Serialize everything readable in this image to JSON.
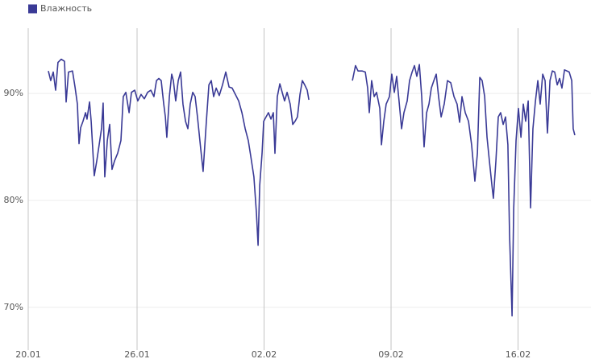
{
  "chart_data": {
    "type": "line",
    "x": [
      1.11,
      1.24,
      1.38,
      1.51,
      1.64,
      1.82,
      2.0,
      2.09,
      2.22,
      2.44,
      2.58,
      2.71,
      2.8,
      2.89,
      3.02,
      3.16,
      3.24,
      3.38,
      3.47,
      3.64,
      3.78,
      3.91,
      4.04,
      4.13,
      4.22,
      4.36,
      4.49,
      4.62,
      4.76,
      4.93,
      5.11,
      5.24,
      5.38,
      5.56,
      5.69,
      5.87,
      6.04,
      6.22,
      6.4,
      6.58,
      6.76,
      6.93,
      7.07,
      7.2,
      7.33,
      7.47,
      7.56,
      7.64,
      7.78,
      7.91,
      8.0,
      8.13,
      8.27,
      8.4,
      8.53,
      8.67,
      8.8,
      8.93,
      9.07,
      9.2,
      9.33,
      9.51,
      9.64,
      9.82,
      9.96,
      10.09,
      10.22,
      10.36,
      10.53,
      10.71,
      10.89,
      11.07,
      11.24,
      11.42,
      11.6,
      11.78,
      11.96,
      12.13,
      12.27,
      12.44,
      12.58,
      12.67,
      12.76,
      12.89,
      12.98,
      13.11,
      13.24,
      13.38,
      13.51,
      13.6,
      13.73,
      13.87,
      14.0,
      14.13,
      14.27,
      14.44,
      14.58,
      14.71,
      14.84,
      14.98,
      15.11,
      15.24,
      15.38,
      15.47,
      16.7,
      17.87,
      18.04,
      18.18,
      18.4,
      18.58,
      18.71,
      18.8,
      18.93,
      19.07,
      19.2,
      19.38,
      19.47,
      19.6,
      19.73,
      19.91,
      20.04,
      20.18,
      20.31,
      20.44,
      20.58,
      20.71,
      20.89,
      21.02,
      21.16,
      21.29,
      21.42,
      21.56,
      21.69,
      21.82,
      21.96,
      22.09,
      22.22,
      22.36,
      22.49,
      22.62,
      22.76,
      22.93,
      23.11,
      23.29,
      23.47,
      23.64,
      23.78,
      23.91,
      24.09,
      24.27,
      24.44,
      24.62,
      24.76,
      24.89,
      25.02,
      25.16,
      25.29,
      25.42,
      25.56,
      25.64,
      25.78,
      25.91,
      26.04,
      26.18,
      26.31,
      26.44,
      26.53,
      26.67,
      26.76,
      26.89,
      27.02,
      27.16,
      27.29,
      27.42,
      27.56,
      27.69,
      27.82,
      27.96,
      28.09,
      28.22,
      28.36,
      28.49,
      28.62,
      28.76,
      28.89,
      29.02,
      29.16,
      29.29,
      29.42,
      29.56,
      29.69,
      29.82,
      29.96,
      30.04,
      30.13
    ],
    "series": [
      {
        "name": "Влажность",
        "color": "#3a3a96",
        "values": [
          92.1,
          91.2,
          92,
          90.3,
          92.9,
          93.2,
          93,
          89.2,
          92,
          92.1,
          90.6,
          89,
          85.3,
          86.8,
          87.4,
          88.2,
          87.6,
          89.2,
          87.4,
          82.3,
          83.7,
          85.2,
          86.7,
          89.1,
          82.2,
          85.6,
          87.1,
          82.9,
          83.7,
          84.4,
          85.6,
          89.7,
          90.1,
          88.2,
          90.1,
          90.3,
          89.3,
          89.9,
          89.5,
          90.1,
          90.3,
          89.7,
          91.2,
          91.4,
          91.2,
          89,
          87.8,
          85.9,
          89.7,
          91.8,
          91.2,
          89.3,
          91.2,
          92,
          89,
          87.4,
          86.7,
          89,
          90.1,
          89.7,
          87.8,
          84.8,
          82.7,
          87.4,
          90.8,
          91.2,
          89.7,
          90.5,
          89.8,
          90.8,
          92,
          90.6,
          90.5,
          89.9,
          89.3,
          88.2,
          86.7,
          85.6,
          84.1,
          82.2,
          78.8,
          75.8,
          81.4,
          84.4,
          87.4,
          87.8,
          88.2,
          87.6,
          88.2,
          84.4,
          89.7,
          90.9,
          90.1,
          89.3,
          90.1,
          89,
          87.1,
          87.4,
          87.8,
          89.9,
          91.2,
          90.8,
          90.3,
          89.4,
          null,
          91.2,
          92.6,
          92.1,
          92.1,
          92,
          90.5,
          88.2,
          91.2,
          89.7,
          90.1,
          88.6,
          85.2,
          87.4,
          89,
          89.7,
          91.8,
          90.1,
          91.6,
          89.3,
          86.7,
          88.2,
          89.3,
          91.2,
          92,
          92.6,
          91.6,
          92.7,
          89.7,
          85,
          88.2,
          89,
          90.5,
          91.2,
          91.8,
          89.7,
          87.8,
          89,
          91.2,
          91,
          89.7,
          89,
          87.3,
          89.7,
          88.2,
          87.4,
          85.2,
          81.8,
          84.4,
          91.5,
          91.2,
          89.7,
          85.9,
          83.7,
          81.4,
          80.2,
          83.7,
          87.8,
          88.2,
          87.1,
          87.8,
          85.2,
          76.9,
          69.2,
          79.2,
          85.6,
          88.6,
          85.9,
          89,
          87.4,
          89.3,
          79.3,
          86.7,
          89.3,
          91.2,
          89,
          91.8,
          91.2,
          86.3,
          91.2,
          92.1,
          92,
          90.8,
          91.4,
          90.5,
          92.2,
          92.1,
          92,
          91.2,
          86.7,
          86.1
        ]
      }
    ],
    "xlim": [
      0,
      31.11
    ],
    "xticks": [
      {
        "value": 0,
        "label": "20.01"
      },
      {
        "value": 6,
        "label": "26.01"
      },
      {
        "value": 13,
        "label": "02.02"
      },
      {
        "value": 20,
        "label": "09.02"
      },
      {
        "value": 27,
        "label": "16.02"
      }
    ],
    "ylim": [
      66,
      96.1
    ],
    "yticks": [
      {
        "value": 70,
        "label": "70%"
      },
      {
        "value": 80,
        "label": "80%"
      },
      {
        "value": 90,
        "label": "90%"
      }
    ],
    "grid": true
  }
}
